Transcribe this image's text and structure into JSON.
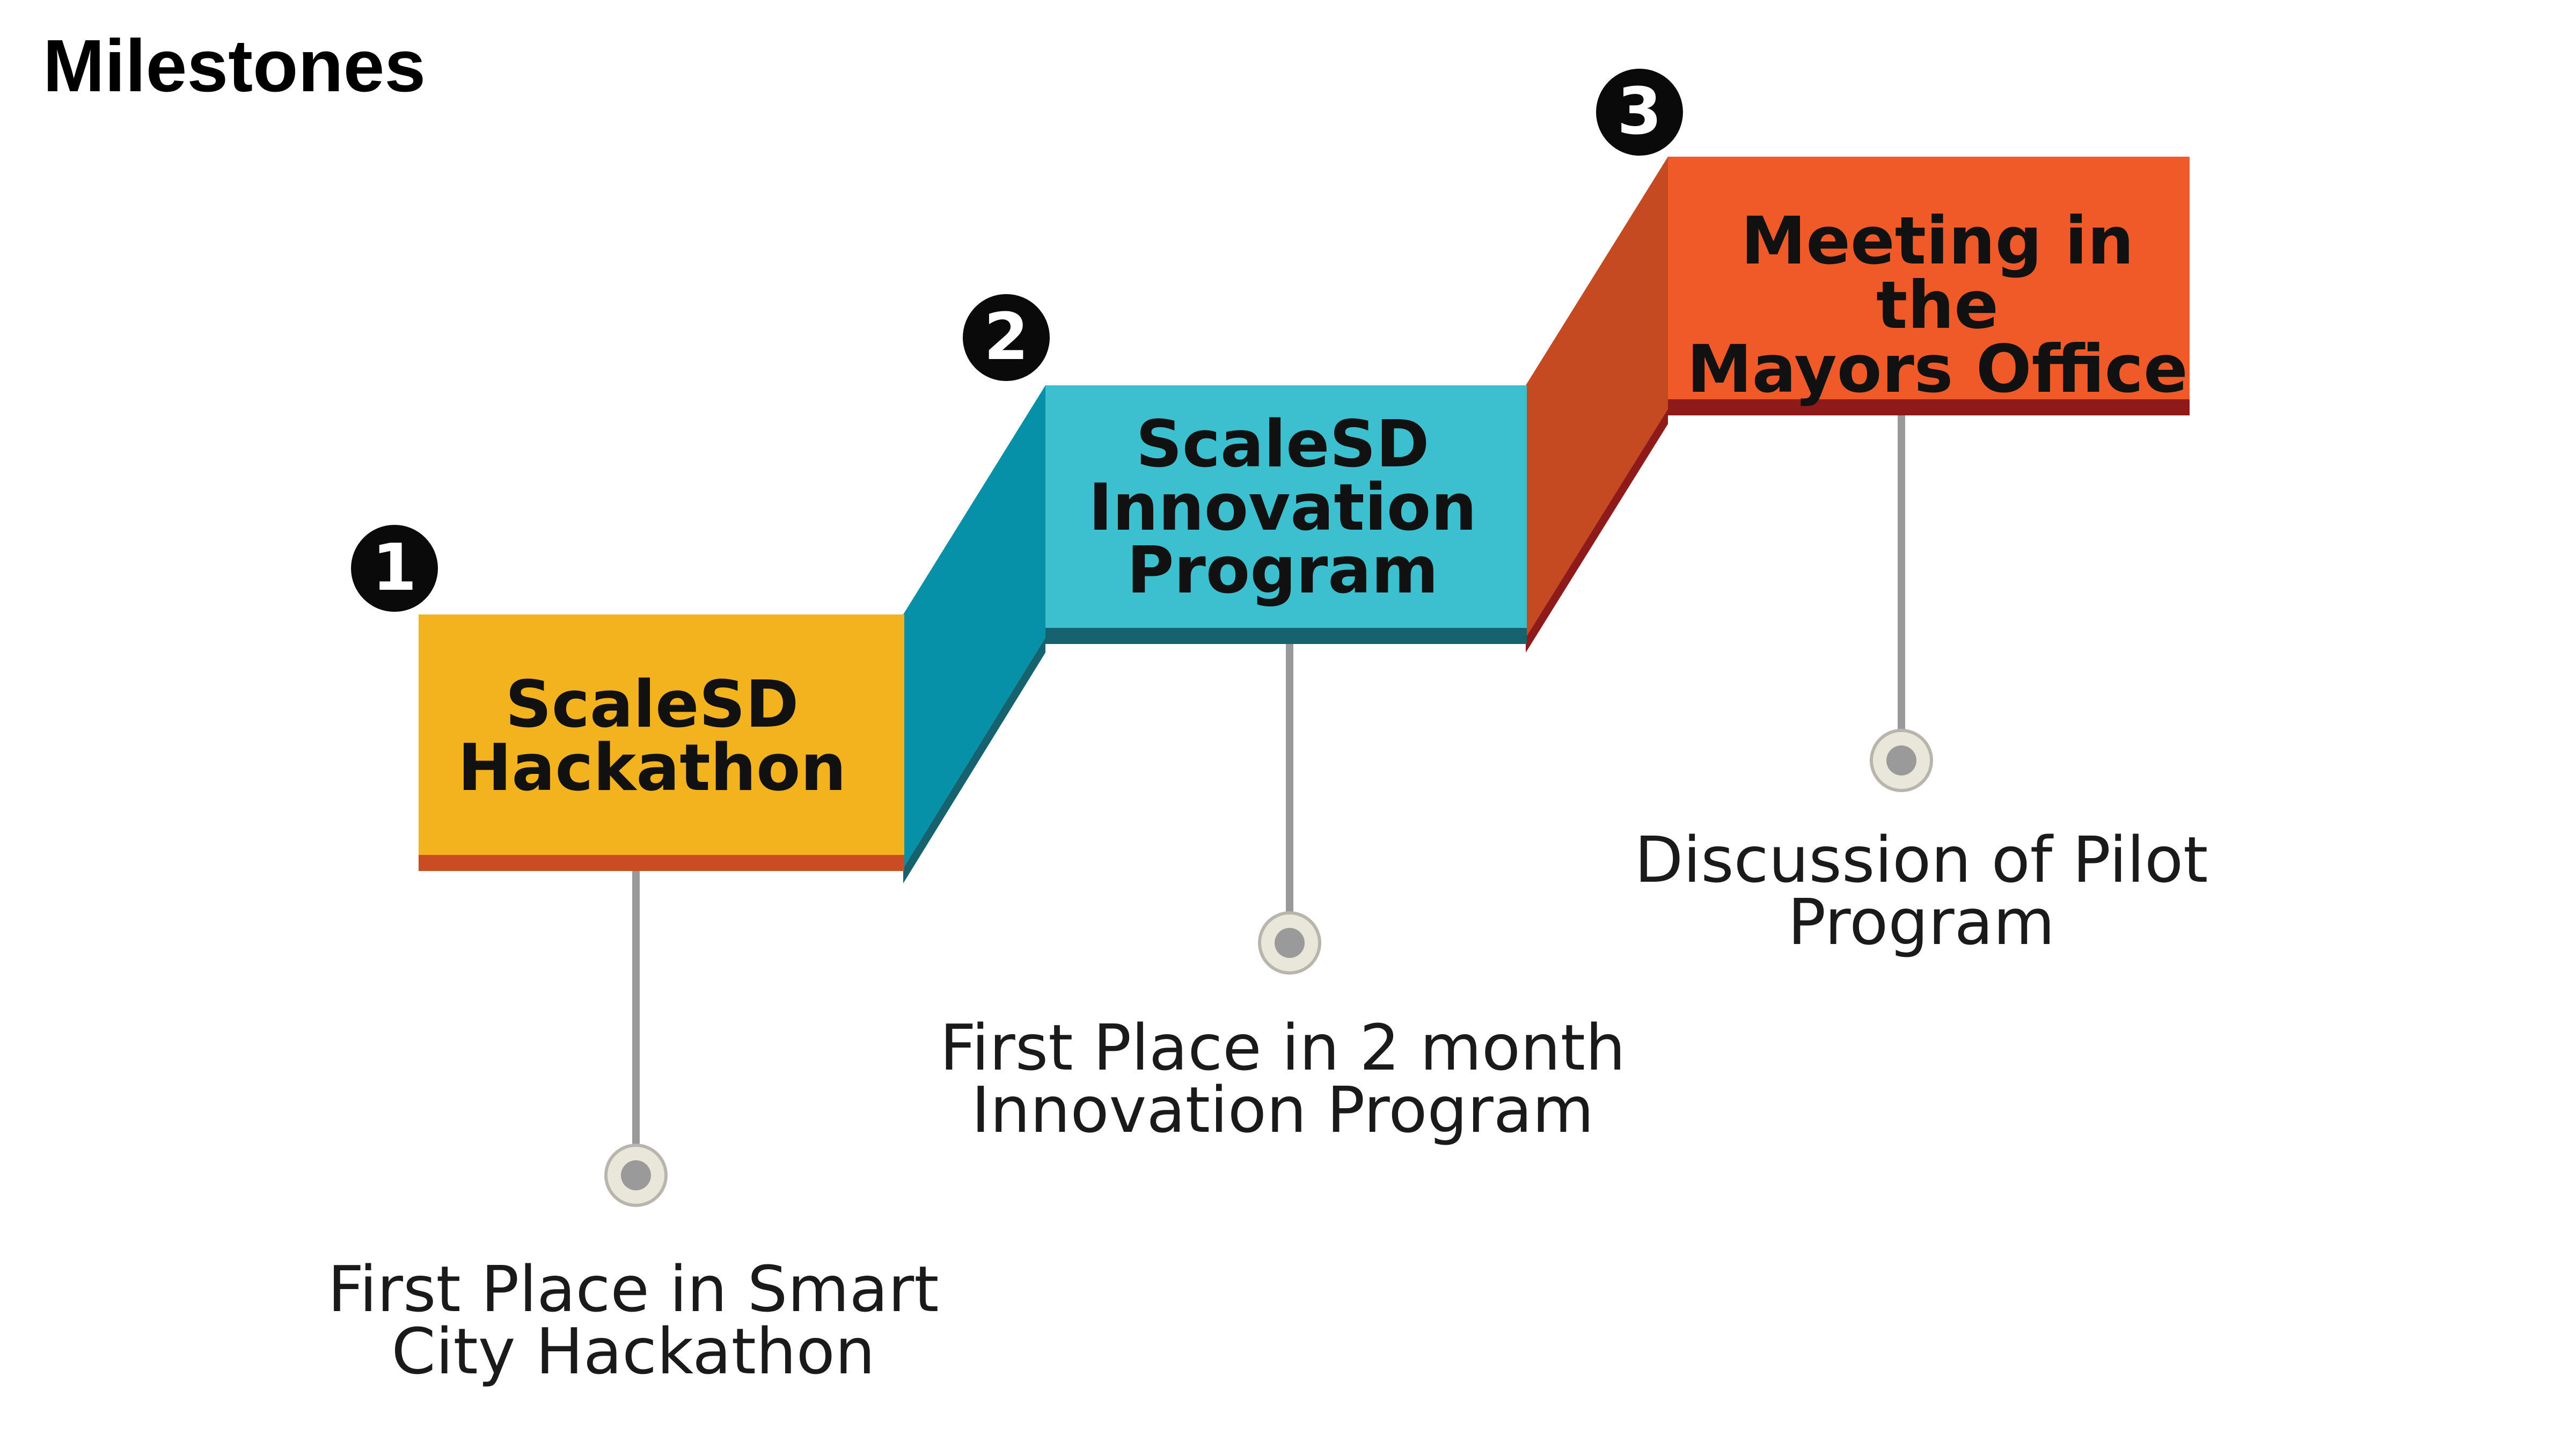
{
  "title": "Milestones",
  "colors": {
    "step1_face": "#F2B31F",
    "step1_bottom": "#C94C22",
    "step2_face": "#3CC0CF",
    "step2_side": "#0791A8",
    "step2_bottom": "#16626F",
    "step3_face": "#F05A28",
    "step3_side": "#C64A21",
    "step3_bottom": "#8E1A1A",
    "connector": "#999999",
    "node_ring": "#E9E6DA",
    "node_center": "#9A9A9A"
  },
  "steps": [
    {
      "number": "1",
      "label": "ScaleSD\nHackathon",
      "description": "First Place in Smart\nCity Hackathon"
    },
    {
      "number": "2",
      "label": "ScaleSD\nInnovation\nProgram",
      "description": "First Place in 2 month\nInnovation Program"
    },
    {
      "number": "3",
      "label": "Meeting in the\nMayors Office",
      "description": "Discussion of Pilot\nProgram"
    }
  ]
}
